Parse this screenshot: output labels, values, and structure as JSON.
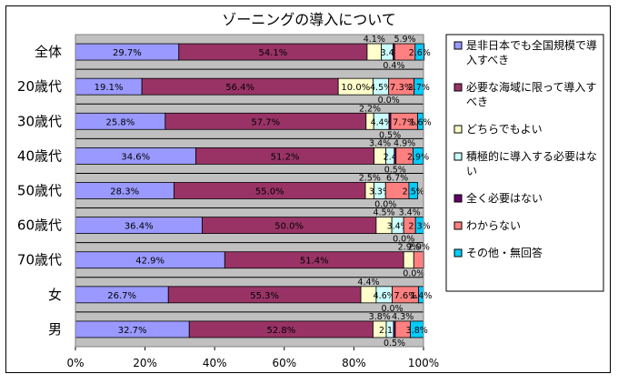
{
  "chart_data": {
    "type": "bar",
    "stacked": true,
    "orientation": "horizontal",
    "percent": true,
    "title": "ゾーニングの導入について",
    "categories": [
      "全体",
      "20歳代",
      "30歳代",
      "40歳代",
      "50歳代",
      "60歳代",
      "70歳代",
      "女",
      "男"
    ],
    "series": [
      {
        "name": "是非日本でも全国規模で導入すべき",
        "color": "#9999ff",
        "values": [
          29.7,
          19.1,
          25.8,
          34.6,
          28.3,
          36.4,
          42.9,
          26.7,
          32.7
        ]
      },
      {
        "name": "必要な海域に限って導入すべき",
        "color": "#993366",
        "values": [
          54.1,
          56.4,
          57.7,
          51.2,
          55.0,
          50.0,
          51.4,
          55.3,
          52.8
        ]
      },
      {
        "name": "どちらでもよい",
        "color": "#ffffcc",
        "values": [
          4.1,
          10.0,
          2.2,
          3.4,
          2.5,
          4.5,
          2.9,
          4.4,
          3.8
        ]
      },
      {
        "name": "積極的に導入する必要はない",
        "color": "#ccffff",
        "values": [
          3.4,
          4.5,
          4.4,
          2.4,
          3.3,
          3.4,
          0.0,
          4.6,
          2.1
        ]
      },
      {
        "name": "全く必要はない",
        "color": "#660066",
        "values": [
          0.4,
          0.0,
          0.5,
          0.5,
          0.0,
          0.0,
          0.0,
          0.0,
          0.5
        ]
      },
      {
        "name": "わからない",
        "color": "#ff8080",
        "values": [
          5.9,
          7.3,
          7.7,
          4.9,
          6.7,
          3.4,
          2.9,
          7.6,
          4.3
        ]
      },
      {
        "name": "その他・無回答",
        "color": "#00ccff",
        "values": [
          2.6,
          2.7,
          1.6,
          2.9,
          2.5,
          2.3,
          0.0,
          1.4,
          3.8
        ]
      }
    ],
    "bar_labels": [
      [
        "29.7%",
        "54.1%",
        "4.1%",
        "3.4",
        "0.4%",
        "5.9%",
        "2.6%"
      ],
      [
        "19.1%",
        "56.4%",
        "10.0%",
        "4.5%",
        "0.0%",
        "7.3%",
        "2.7%"
      ],
      [
        "25.8%",
        "57.7%",
        "2.2%",
        "4.4%",
        "0.5%",
        "7.7%",
        "1.6%"
      ],
      [
        "34.6%",
        "51.2%",
        "3.4%",
        "2.4",
        "0.5%",
        "4.9%",
        "2.9%"
      ],
      [
        "28.3%",
        "55.0%",
        "2.5%",
        "3.3%",
        "0.0%",
        "6.7%",
        "2.5%"
      ],
      [
        "36.4%",
        "50.0%",
        "4.5%",
        "3.4%",
        "0.0%",
        "3.4%",
        "2.3%"
      ],
      [
        "42.9%",
        "51.4%",
        "2.9%",
        "",
        "0.0%",
        "2.9%",
        ""
      ],
      [
        "26.7%",
        "55.3%",
        "4.4%",
        "4.6%",
        "0.0%",
        "7.6%",
        "1.4%"
      ],
      [
        "32.7%",
        "52.8%",
        "3.8%",
        "2.1%",
        "0.5%",
        "4.3%",
        "3.8%"
      ]
    ],
    "xlim": [
      0,
      100
    ],
    "xticks": [
      "0%",
      "20%",
      "40%",
      "60%",
      "80%",
      "100%"
    ],
    "legend_position": "right",
    "grid": true
  }
}
